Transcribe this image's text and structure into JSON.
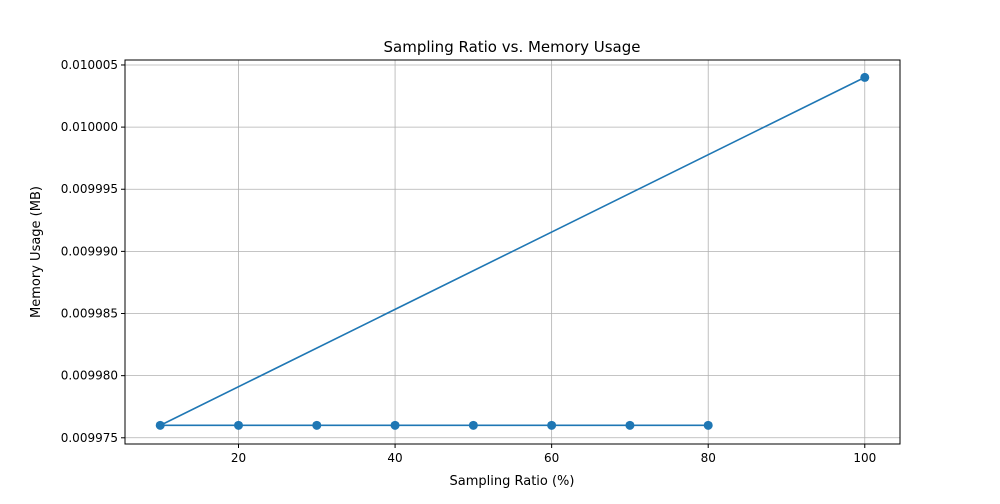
{
  "chart_data": {
    "type": "line",
    "title": "Sampling Ratio vs. Memory Usage",
    "xlabel": "Sampling Ratio (%)",
    "ylabel": "Memory Usage (MB)",
    "xlim": [
      5.5,
      104.5
    ],
    "ylim": [
      0.0099745,
      0.0100054
    ],
    "xticks": [
      20,
      40,
      60,
      80,
      100
    ],
    "xtick_labels": [
      "20",
      "40",
      "60",
      "80",
      "100"
    ],
    "yticks": [
      0.009975,
      0.00998,
      0.009985,
      0.00999,
      0.009995,
      0.01,
      0.010005
    ],
    "ytick_labels": [
      "0.009975",
      "0.009980",
      "0.009985",
      "0.009990",
      "0.009995",
      "0.010000",
      "0.010005"
    ],
    "grid": true,
    "series": [
      {
        "color": "#1f77b4",
        "marker": "circle",
        "x": [
          100,
          10,
          20,
          30,
          40,
          50,
          60,
          70,
          80
        ],
        "y": [
          0.010004,
          0.009976,
          0.009976,
          0.009976,
          0.009976,
          0.009976,
          0.009976,
          0.009976,
          0.009976
        ]
      }
    ]
  }
}
